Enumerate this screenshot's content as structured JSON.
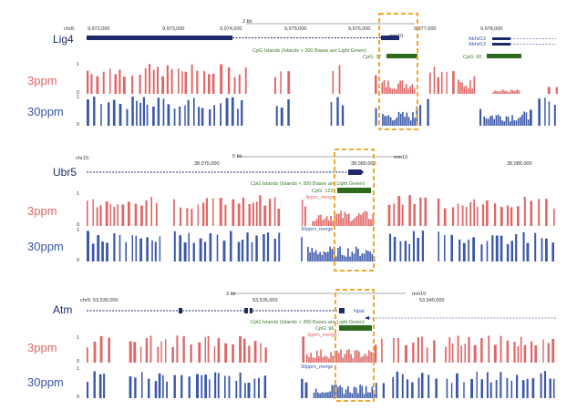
{
  "colors": {
    "treat3": "#e06666",
    "treat30": "#3b57a8",
    "gene": "#1f2a6b",
    "cpg": "#2f6b1e",
    "highlight": "#f0a830"
  },
  "panels": [
    {
      "gene": "Lig4",
      "chrom": "chr8:",
      "scale_label": "2 kb",
      "assembly": "mm10",
      "coords": [
        "9,972,000",
        "9,973,000",
        "9,974,000",
        "9,975,000",
        "9,976,000",
        "9,977,000",
        "9,978,000"
      ],
      "cpg_track_label": "CpG Islands (Islands < 300 Bases are Light Green)",
      "cpg_labels": [
        "CpG: 37",
        "CpG: 60"
      ],
      "extra_genes": [
        "Abhd13",
        "Abhd13"
      ],
      "scale_marks": [
        "1",
        "0",
        "1",
        "0"
      ],
      "track_labels": {
        "t3": "3ppm",
        "t30": "30ppm"
      }
    },
    {
      "gene": "Ubr5",
      "chrom": "chr15:",
      "scale_label": "5 kb",
      "assembly": "mm10",
      "coords": [
        "38,075,000",
        "38,080,000",
        "38,085,000"
      ],
      "cpg_track_label": "CpG Islands (Islands < 300 Bases are Light Green)",
      "cpg_labels": [
        "CpG: 123"
      ],
      "track_sublabels": [
        "3ppm_merge",
        "30ppm_merge"
      ],
      "scale_marks": [
        "1",
        "0",
        "1",
        "0"
      ],
      "track_labels": {
        "t3": "3ppm",
        "t30": "30ppm"
      }
    },
    {
      "gene": "Atm",
      "chrom": "chr9:",
      "scale_label": "3 kb",
      "assembly": "mm10",
      "coords": [
        "53,530,000",
        "53,535,000",
        "53,540,000"
      ],
      "cpg_track_label": "CpG Islands (Islands < 300 Bases are Light Green)",
      "cpg_labels": [
        "CpG: 96"
      ],
      "extra_genes": [
        "Npat"
      ],
      "track_sublabels": [
        "3ppm_merge",
        "30ppm_merge"
      ],
      "scale_marks": [
        "1",
        "0",
        "1",
        "0"
      ],
      "track_labels": {
        "t3": "3ppm",
        "t30": "30ppm"
      }
    }
  ]
}
